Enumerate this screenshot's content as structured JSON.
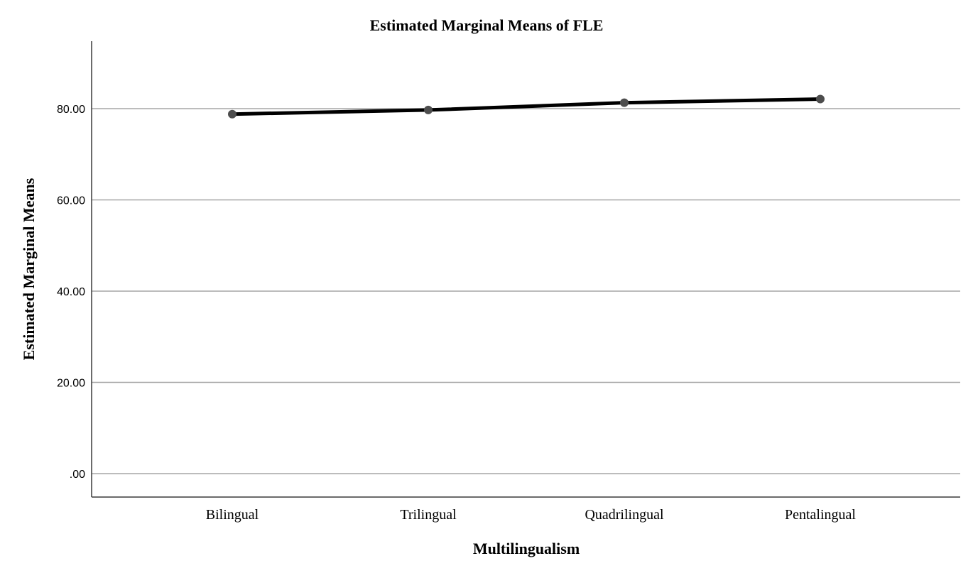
{
  "chart_data": {
    "type": "line",
    "title": "Estimated Marginal Means of FLE",
    "xlabel": "Multilingualism",
    "ylabel": "Estimated Marginal Means",
    "categories": [
      "Bilingual",
      "Trilingual",
      "Quadrilingual",
      "Pentalingual"
    ],
    "series": [
      {
        "values": [
          78.8,
          79.7,
          81.3,
          82.1
        ]
      }
    ],
    "y_ticks": [
      0,
      20,
      40,
      60,
      80
    ],
    "y_tick_labels": [
      ".00",
      "20.00",
      "40.00",
      "60.00",
      "80.00"
    ],
    "ylim": [
      -5,
      95
    ],
    "grid": true,
    "legend": "none",
    "colors": {
      "line": "#000000",
      "marker": "#4d4d4d",
      "grid": "#a6a6a6",
      "axis": "#3a3a3a"
    }
  }
}
